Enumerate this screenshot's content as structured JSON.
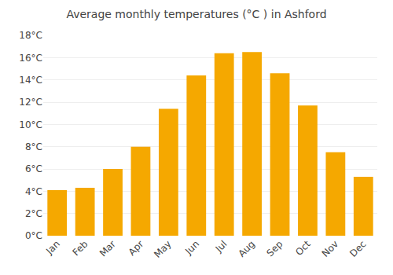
{
  "chart_data": {
    "type": "bar",
    "title": "Average monthly temperatures (°C ) in Ashford",
    "categories": [
      "Jan",
      "Feb",
      "Mar",
      "Apr",
      "May",
      "Jun",
      "Jul",
      "Aug",
      "Sep",
      "Oct",
      "Nov",
      "Dec"
    ],
    "values": [
      4.1,
      4.3,
      6.0,
      8.0,
      11.4,
      14.4,
      16.4,
      16.5,
      14.6,
      11.7,
      7.5,
      5.3
    ],
    "color": "#F5A800",
    "ylim": [
      0,
      18
    ],
    "yticks": [
      {
        "value": 0,
        "label": "0°C"
      },
      {
        "value": 2,
        "label": "2°C"
      },
      {
        "value": 4,
        "label": "4°C"
      },
      {
        "value": 6,
        "label": "6°C"
      },
      {
        "value": 8,
        "label": "8°C"
      },
      {
        "value": 10,
        "label": "10°C"
      },
      {
        "value": 12,
        "label": "12°C"
      },
      {
        "value": 14,
        "label": "14°C"
      },
      {
        "value": 16,
        "label": "16°C"
      },
      {
        "value": 18,
        "label": "18°C"
      }
    ],
    "grid": true
  }
}
